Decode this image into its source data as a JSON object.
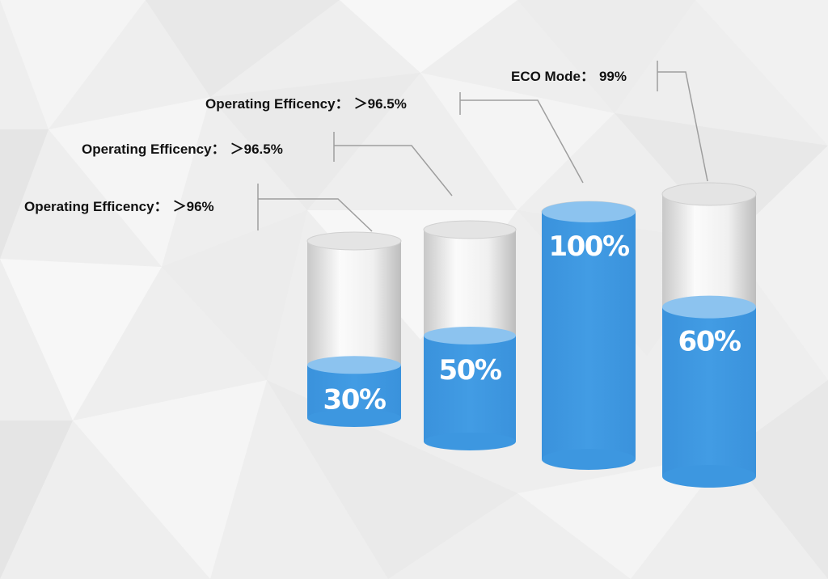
{
  "chart_data": {
    "type": "bar",
    "style": "3d-cylinder",
    "grid": false,
    "ylim": [
      0,
      100
    ],
    "values": [
      30,
      50,
      100,
      60
    ],
    "value_labels": [
      "30%",
      "50%",
      "100%",
      "60%"
    ],
    "callouts": [
      {
        "label": "Operating Efficency：",
        "value": "＞96%"
      },
      {
        "label": "Operating Efficency：",
        "value": "＞96.5%"
      },
      {
        "label": "Operating Efficency：",
        "value": "＞96.5%"
      },
      {
        "label": "ECO Mode：",
        "value": "99%"
      }
    ]
  },
  "colors": {
    "fill": "#3d97e0",
    "fill_top": "#8cc3ef",
    "glass_light": "#fbfbfb",
    "glass_dark": "#c4c4c4",
    "leader_line": "#9e9e9e",
    "background": "#eeeeee"
  }
}
